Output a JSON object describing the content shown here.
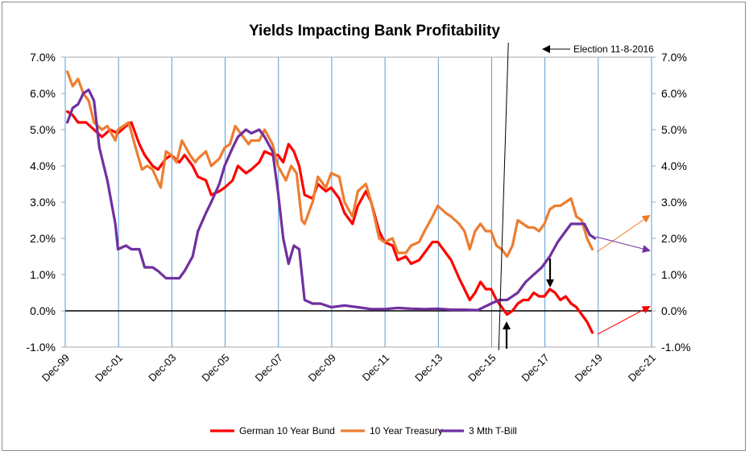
{
  "chart_data": {
    "type": "line",
    "title": "Yields Impacting Bank Profitability",
    "xlabel": "",
    "ylabel": "",
    "ylim": [
      -1.0,
      7.0
    ],
    "y_ticks": [
      "7.0%",
      "6.0%",
      "5.0%",
      "4.0%",
      "3.0%",
      "2.0%",
      "1.0%",
      "0.0%",
      "-1.0%"
    ],
    "y_tick_values": [
      7,
      6,
      5,
      4,
      3,
      2,
      1,
      0,
      -1
    ],
    "x_ticks": [
      "Dec-99",
      "Dec-01",
      "Dec-03",
      "Dec-05",
      "Dec-07",
      "Dec-09",
      "Dec-11",
      "Dec-13",
      "Dec-15",
      "Dec-17",
      "Dec-19",
      "Dec-21"
    ],
    "x_tick_values": [
      1999.92,
      2001.92,
      2003.92,
      2005.92,
      2007.92,
      2009.92,
      2011.92,
      2013.92,
      2015.92,
      2017.92,
      2019.92,
      2021.92
    ],
    "xlim": [
      1999.92,
      2021.92
    ],
    "grid": "vertical",
    "legend_position": "bottom",
    "annotation": "Election 11-8-2016",
    "series": [
      {
        "name": "German 10 Year Bund",
        "color": "#ff0000",
        "points": [
          [
            2000.0,
            5.5
          ],
          [
            2000.2,
            5.4
          ],
          [
            2000.4,
            5.2
          ],
          [
            2000.7,
            5.2
          ],
          [
            2001.0,
            5.0
          ],
          [
            2001.3,
            4.8
          ],
          [
            2001.6,
            5.0
          ],
          [
            2001.9,
            4.9
          ],
          [
            2002.2,
            5.1
          ],
          [
            2002.4,
            5.2
          ],
          [
            2002.7,
            4.6
          ],
          [
            2002.9,
            4.3
          ],
          [
            2003.2,
            4.0
          ],
          [
            2003.4,
            3.9
          ],
          [
            2003.7,
            4.2
          ],
          [
            2003.9,
            4.3
          ],
          [
            2004.2,
            4.1
          ],
          [
            2004.4,
            4.3
          ],
          [
            2004.7,
            4.0
          ],
          [
            2004.9,
            3.7
          ],
          [
            2005.2,
            3.6
          ],
          [
            2005.4,
            3.2
          ],
          [
            2005.7,
            3.3
          ],
          [
            2005.9,
            3.4
          ],
          [
            2006.2,
            3.6
          ],
          [
            2006.4,
            4.0
          ],
          [
            2006.7,
            3.8
          ],
          [
            2006.9,
            3.9
          ],
          [
            2007.2,
            4.1
          ],
          [
            2007.4,
            4.4
          ],
          [
            2007.7,
            4.3
          ],
          [
            2007.9,
            4.3
          ],
          [
            2008.1,
            4.1
          ],
          [
            2008.3,
            4.6
          ],
          [
            2008.5,
            4.4
          ],
          [
            2008.7,
            4.0
          ],
          [
            2008.9,
            3.2
          ],
          [
            2009.2,
            3.1
          ],
          [
            2009.4,
            3.5
          ],
          [
            2009.7,
            3.3
          ],
          [
            2009.9,
            3.4
          ],
          [
            2010.2,
            3.1
          ],
          [
            2010.4,
            2.7
          ],
          [
            2010.7,
            2.4
          ],
          [
            2010.9,
            2.9
          ],
          [
            2011.2,
            3.3
          ],
          [
            2011.4,
            3.0
          ],
          [
            2011.7,
            2.2
          ],
          [
            2011.9,
            1.9
          ],
          [
            2012.2,
            1.8
          ],
          [
            2012.4,
            1.4
          ],
          [
            2012.7,
            1.5
          ],
          [
            2012.9,
            1.3
          ],
          [
            2013.2,
            1.4
          ],
          [
            2013.4,
            1.6
          ],
          [
            2013.7,
            1.9
          ],
          [
            2013.9,
            1.9
          ],
          [
            2014.2,
            1.6
          ],
          [
            2014.4,
            1.4
          ],
          [
            2014.7,
            0.9
          ],
          [
            2014.9,
            0.6
          ],
          [
            2015.1,
            0.3
          ],
          [
            2015.3,
            0.5
          ],
          [
            2015.5,
            0.8
          ],
          [
            2015.7,
            0.6
          ],
          [
            2015.9,
            0.6
          ],
          [
            2016.1,
            0.3
          ],
          [
            2016.3,
            0.1
          ],
          [
            2016.5,
            -0.1
          ],
          [
            2016.7,
            0.0
          ],
          [
            2016.9,
            0.2
          ],
          [
            2017.1,
            0.3
          ],
          [
            2017.3,
            0.3
          ],
          [
            2017.5,
            0.5
          ],
          [
            2017.7,
            0.4
          ],
          [
            2017.9,
            0.4
          ],
          [
            2018.1,
            0.6
          ],
          [
            2018.3,
            0.5
          ],
          [
            2018.5,
            0.3
          ],
          [
            2018.7,
            0.4
          ],
          [
            2018.9,
            0.2
          ],
          [
            2019.1,
            0.1
          ],
          [
            2019.3,
            -0.1
          ],
          [
            2019.5,
            -0.3
          ],
          [
            2019.7,
            -0.6
          ]
        ]
      },
      {
        "name": "10 Year Treasury",
        "color": "#ed7d31",
        "points": [
          [
            2000.0,
            6.6
          ],
          [
            2000.2,
            6.2
          ],
          [
            2000.4,
            6.4
          ],
          [
            2000.6,
            6.0
          ],
          [
            2000.8,
            5.8
          ],
          [
            2001.0,
            5.2
          ],
          [
            2001.3,
            5.0
          ],
          [
            2001.5,
            5.1
          ],
          [
            2001.8,
            4.7
          ],
          [
            2001.9,
            5.0
          ],
          [
            2002.1,
            5.1
          ],
          [
            2002.3,
            5.2
          ],
          [
            2002.6,
            4.4
          ],
          [
            2002.8,
            3.9
          ],
          [
            2003.0,
            4.0
          ],
          [
            2003.2,
            3.9
          ],
          [
            2003.5,
            3.4
          ],
          [
            2003.7,
            4.4
          ],
          [
            2003.9,
            4.3
          ],
          [
            2004.1,
            4.1
          ],
          [
            2004.3,
            4.7
          ],
          [
            2004.6,
            4.3
          ],
          [
            2004.8,
            4.1
          ],
          [
            2004.9,
            4.2
          ],
          [
            2005.2,
            4.4
          ],
          [
            2005.4,
            4.0
          ],
          [
            2005.7,
            4.2
          ],
          [
            2005.9,
            4.5
          ],
          [
            2006.1,
            4.6
          ],
          [
            2006.3,
            5.1
          ],
          [
            2006.6,
            4.8
          ],
          [
            2006.8,
            4.6
          ],
          [
            2006.9,
            4.7
          ],
          [
            2007.2,
            4.7
          ],
          [
            2007.4,
            5.0
          ],
          [
            2007.7,
            4.6
          ],
          [
            2007.9,
            4.0
          ],
          [
            2008.2,
            3.6
          ],
          [
            2008.4,
            4.0
          ],
          [
            2008.6,
            3.8
          ],
          [
            2008.8,
            2.5
          ],
          [
            2008.9,
            2.4
          ],
          [
            2009.2,
            3.0
          ],
          [
            2009.4,
            3.7
          ],
          [
            2009.7,
            3.4
          ],
          [
            2009.9,
            3.8
          ],
          [
            2010.2,
            3.7
          ],
          [
            2010.4,
            3.0
          ],
          [
            2010.7,
            2.6
          ],
          [
            2010.9,
            3.3
          ],
          [
            2011.2,
            3.5
          ],
          [
            2011.4,
            3.0
          ],
          [
            2011.7,
            2.0
          ],
          [
            2011.9,
            1.9
          ],
          [
            2012.2,
            2.0
          ],
          [
            2012.4,
            1.6
          ],
          [
            2012.7,
            1.6
          ],
          [
            2012.9,
            1.8
          ],
          [
            2013.2,
            1.9
          ],
          [
            2013.4,
            2.2
          ],
          [
            2013.7,
            2.6
          ],
          [
            2013.9,
            2.9
          ],
          [
            2014.2,
            2.7
          ],
          [
            2014.4,
            2.6
          ],
          [
            2014.7,
            2.4
          ],
          [
            2014.9,
            2.2
          ],
          [
            2015.1,
            1.7
          ],
          [
            2015.3,
            2.2
          ],
          [
            2015.5,
            2.4
          ],
          [
            2015.7,
            2.2
          ],
          [
            2015.9,
            2.2
          ],
          [
            2016.1,
            1.8
          ],
          [
            2016.3,
            1.7
          ],
          [
            2016.5,
            1.5
          ],
          [
            2016.7,
            1.8
          ],
          [
            2016.9,
            2.5
          ],
          [
            2017.1,
            2.4
          ],
          [
            2017.3,
            2.3
          ],
          [
            2017.5,
            2.3
          ],
          [
            2017.7,
            2.2
          ],
          [
            2017.9,
            2.4
          ],
          [
            2018.1,
            2.8
          ],
          [
            2018.3,
            2.9
          ],
          [
            2018.5,
            2.9
          ],
          [
            2018.7,
            3.0
          ],
          [
            2018.9,
            3.1
          ],
          [
            2019.1,
            2.6
          ],
          [
            2019.3,
            2.5
          ],
          [
            2019.5,
            2.0
          ],
          [
            2019.7,
            1.7
          ]
        ]
      },
      {
        "name": "3 Mth T-Bill",
        "color": "#7030a0",
        "points": [
          [
            2000.0,
            5.2
          ],
          [
            2000.2,
            5.6
          ],
          [
            2000.4,
            5.7
          ],
          [
            2000.6,
            6.0
          ],
          [
            2000.8,
            6.1
          ],
          [
            2001.0,
            5.8
          ],
          [
            2001.2,
            4.5
          ],
          [
            2001.5,
            3.6
          ],
          [
            2001.8,
            2.4
          ],
          [
            2001.9,
            1.7
          ],
          [
            2002.2,
            1.8
          ],
          [
            2002.4,
            1.7
          ],
          [
            2002.7,
            1.7
          ],
          [
            2002.9,
            1.2
          ],
          [
            2003.2,
            1.2
          ],
          [
            2003.4,
            1.1
          ],
          [
            2003.7,
            0.9
          ],
          [
            2003.9,
            0.9
          ],
          [
            2004.2,
            0.9
          ],
          [
            2004.4,
            1.1
          ],
          [
            2004.7,
            1.5
          ],
          [
            2004.9,
            2.2
          ],
          [
            2005.2,
            2.7
          ],
          [
            2005.4,
            3.0
          ],
          [
            2005.7,
            3.5
          ],
          [
            2005.9,
            4.0
          ],
          [
            2006.2,
            4.5
          ],
          [
            2006.4,
            4.8
          ],
          [
            2006.7,
            5.0
          ],
          [
            2006.9,
            4.9
          ],
          [
            2007.2,
            5.0
          ],
          [
            2007.4,
            4.8
          ],
          [
            2007.7,
            4.4
          ],
          [
            2007.9,
            3.3
          ],
          [
            2008.1,
            2.0
          ],
          [
            2008.3,
            1.3
          ],
          [
            2008.5,
            1.8
          ],
          [
            2008.7,
            1.7
          ],
          [
            2008.9,
            0.3
          ],
          [
            2009.2,
            0.2
          ],
          [
            2009.5,
            0.2
          ],
          [
            2009.9,
            0.1
          ],
          [
            2010.4,
            0.15
          ],
          [
            2010.9,
            0.1
          ],
          [
            2011.4,
            0.05
          ],
          [
            2011.9,
            0.05
          ],
          [
            2012.4,
            0.08
          ],
          [
            2012.9,
            0.06
          ],
          [
            2013.4,
            0.05
          ],
          [
            2013.9,
            0.06
          ],
          [
            2014.4,
            0.03
          ],
          [
            2014.9,
            0.03
          ],
          [
            2015.4,
            0.02
          ],
          [
            2015.9,
            0.2
          ],
          [
            2016.2,
            0.3
          ],
          [
            2016.5,
            0.3
          ],
          [
            2016.9,
            0.5
          ],
          [
            2017.2,
            0.8
          ],
          [
            2017.5,
            1.0
          ],
          [
            2017.8,
            1.2
          ],
          [
            2018.1,
            1.5
          ],
          [
            2018.4,
            1.9
          ],
          [
            2018.7,
            2.2
          ],
          [
            2018.9,
            2.4
          ],
          [
            2019.2,
            2.4
          ],
          [
            2019.4,
            2.4
          ],
          [
            2019.6,
            2.1
          ],
          [
            2019.8,
            2.0
          ]
        ]
      }
    ]
  }
}
